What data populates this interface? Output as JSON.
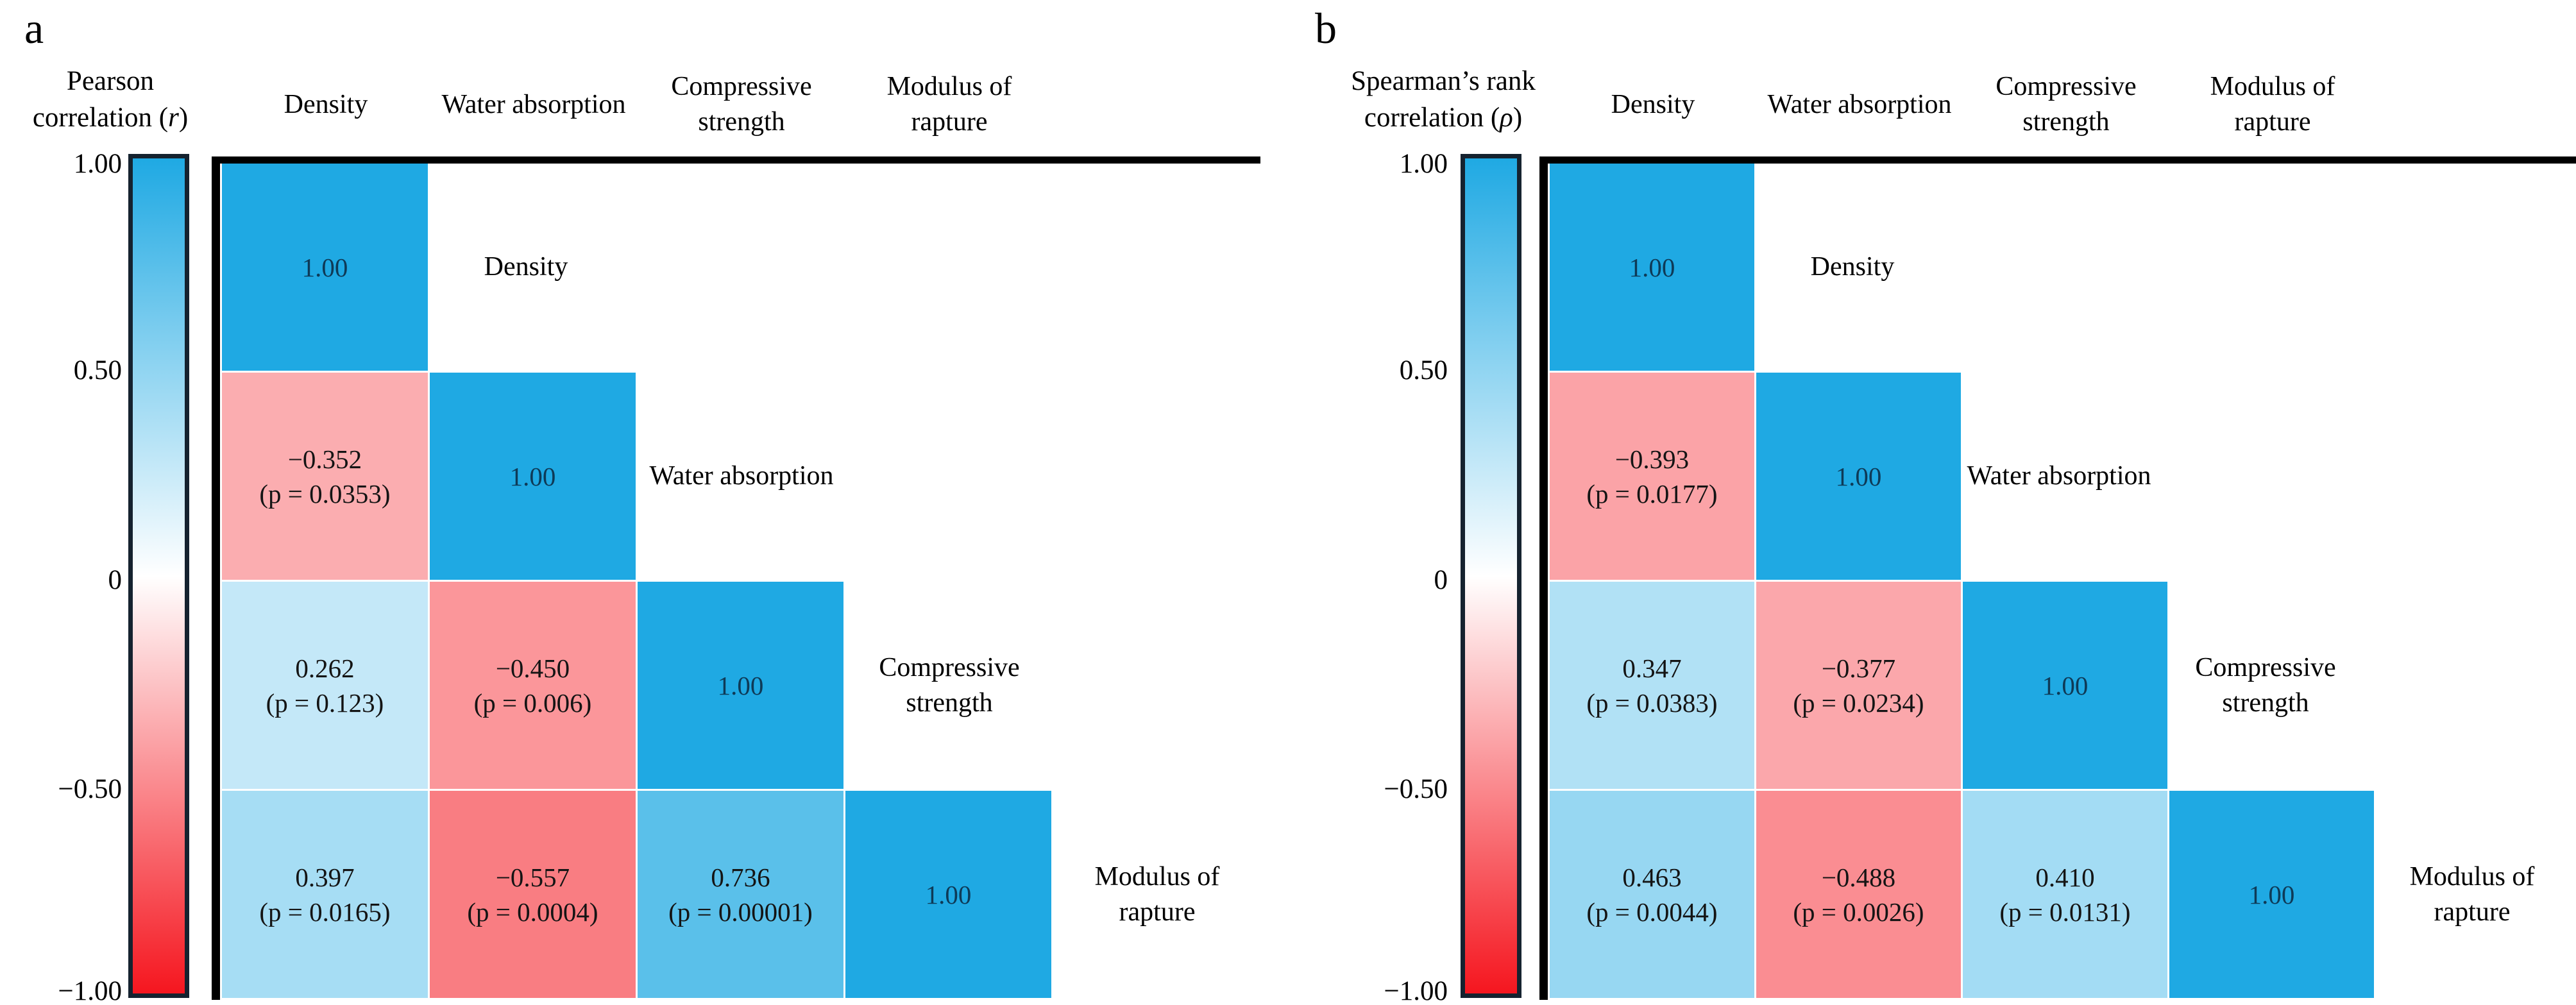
{
  "panels": [
    {
      "panel_label": "a",
      "title_line1": "Pearson",
      "title_line2_prefix": "correlation (",
      "title_symbol": "r",
      "title_line2_suffix": ")",
      "colorbar": {
        "ticks": [
          "1.00",
          "0.50",
          "0",
          "−0.50",
          "−1.00"
        ]
      },
      "variables": [
        "Density",
        "Water absorption",
        "Compressive strength",
        "Modulus of rapture"
      ],
      "cells": [
        [
          {
            "display": "1.00",
            "value": 1.0
          }
        ],
        [
          {
            "display": "−0.352",
            "p": "(p = 0.0353)",
            "value": -0.352
          },
          {
            "display": "1.00",
            "value": 1.0
          }
        ],
        [
          {
            "display": "0.262",
            "p": "(p = 0.123)",
            "value": 0.262
          },
          {
            "display": "−0.450",
            "p": "(p = 0.006)",
            "value": -0.45
          },
          {
            "display": "1.00",
            "value": 1.0
          }
        ],
        [
          {
            "display": "0.397",
            "p": "(p = 0.0165)",
            "value": 0.397
          },
          {
            "display": "−0.557",
            "p": "(p = 0.0004)",
            "value": -0.557
          },
          {
            "display": "0.736",
            "p": "(p = 0.00001)",
            "value": 0.736
          },
          {
            "display": "1.00",
            "value": 1.0
          }
        ]
      ]
    },
    {
      "panel_label": "b",
      "title_line1": "Spearman’s rank",
      "title_line2_prefix": "correlation (",
      "title_symbol": "ρ",
      "title_line2_suffix": ")",
      "colorbar": {
        "ticks": [
          "1.00",
          "0.50",
          "0",
          "−0.50",
          "−1.00"
        ]
      },
      "variables": [
        "Density",
        "Water absorption",
        "Compressive strength",
        "Modulus of rapture"
      ],
      "cells": [
        [
          {
            "display": "1.00",
            "value": 1.0
          }
        ],
        [
          {
            "display": "−0.393",
            "p": "(p = 0.0177)",
            "value": -0.393
          },
          {
            "display": "1.00",
            "value": 1.0
          }
        ],
        [
          {
            "display": "0.347",
            "p": "(p = 0.0383)",
            "value": 0.347
          },
          {
            "display": "−0.377",
            "p": "(p = 0.0234)",
            "value": -0.377
          },
          {
            "display": "1.00",
            "value": 1.0
          }
        ],
        [
          {
            "display": "0.463",
            "p": "(p = 0.0044)",
            "value": 0.463
          },
          {
            "display": "−0.488",
            "p": "(p = 0.0026)",
            "value": -0.488
          },
          {
            "display": "0.410",
            "p": "(p = 0.0131)",
            "value": 0.41
          },
          {
            "display": "1.00",
            "value": 1.0
          }
        ]
      ]
    }
  ],
  "colors": {
    "positive_end": "#1fa9e3",
    "zero": "#ffffff",
    "negative_end": "#f5161f",
    "colorbar_border": "#15222f",
    "diagonal_text": "#0e3a57",
    "cell_text": "#141414"
  },
  "chart_data": [
    {
      "type": "heatmap",
      "title": "Pearson correlation (r)",
      "layout": "lower-triangular correlation matrix, colorbar left, legend ticks 1.00 to -1.00",
      "variables": [
        "Density",
        "Water absorption",
        "Compressive strength",
        "Modulus of rapture"
      ],
      "matrix_lower_triangle": [
        [
          1.0
        ],
        [
          -0.352,
          1.0
        ],
        [
          0.262,
          -0.45,
          1.0
        ],
        [
          0.397,
          -0.557,
          0.736,
          1.0
        ]
      ],
      "p_values_lower_triangle": [
        [
          null
        ],
        [
          0.0353,
          null
        ],
        [
          0.123,
          0.006,
          null
        ],
        [
          0.0165,
          0.0004,
          1e-05,
          null
        ]
      ],
      "colorbar": {
        "range": [
          -1.0,
          1.0
        ],
        "ticks": [
          1.0,
          0.5,
          0,
          -0.5,
          -1.0
        ],
        "positive_color": "#1fa9e3",
        "zero_color": "#ffffff",
        "negative_color": "#f5161f"
      }
    },
    {
      "type": "heatmap",
      "title": "Spearman's rank correlation (ρ)",
      "layout": "lower-triangular correlation matrix, colorbar left, legend ticks 1.00 to -1.00",
      "variables": [
        "Density",
        "Water absorption",
        "Compressive strength",
        "Modulus of rapture"
      ],
      "matrix_lower_triangle": [
        [
          1.0
        ],
        [
          -0.393,
          1.0
        ],
        [
          0.347,
          -0.377,
          1.0
        ],
        [
          0.463,
          -0.488,
          0.41,
          1.0
        ]
      ],
      "p_values_lower_triangle": [
        [
          null
        ],
        [
          0.0177,
          null
        ],
        [
          0.0383,
          0.0234,
          null
        ],
        [
          0.0044,
          0.0026,
          0.0131,
          null
        ]
      ],
      "colorbar": {
        "range": [
          -1.0,
          1.0
        ],
        "ticks": [
          1.0,
          0.5,
          0,
          -0.5,
          -1.0
        ],
        "positive_color": "#1fa9e3",
        "zero_color": "#ffffff",
        "negative_color": "#f5161f"
      }
    }
  ]
}
